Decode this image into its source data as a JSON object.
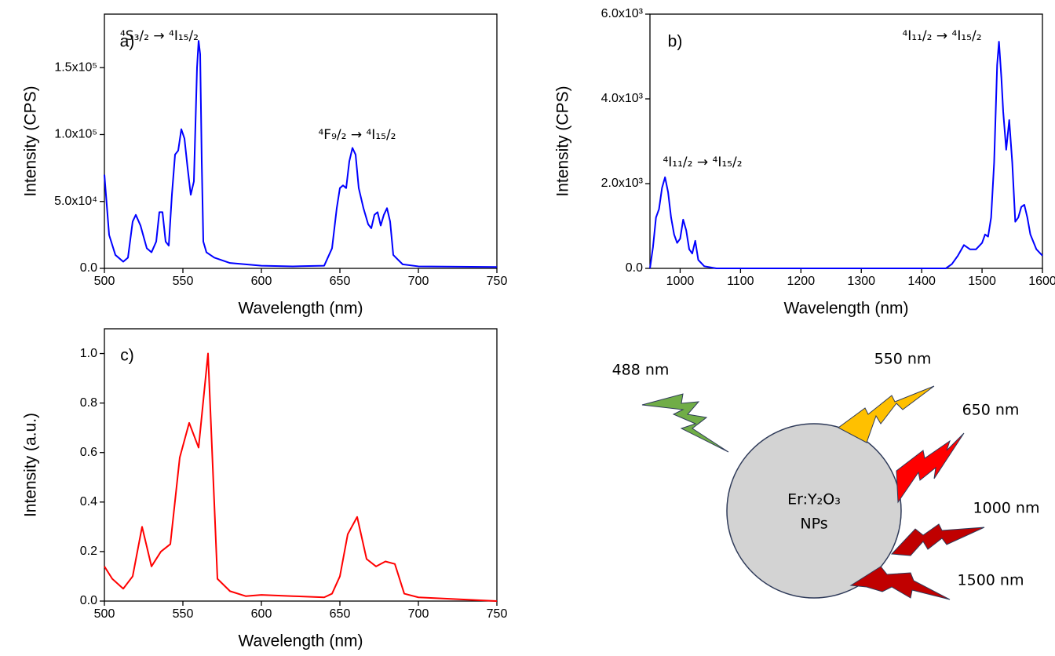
{
  "chart_data": [
    {
      "type": "line",
      "panel_label": "a)",
      "xlabel": "Wavelength (nm)",
      "ylabel": "Intensity (CPS)",
      "annotations": [
        "⁴S₃/₂ → ⁴I₁₅/₂",
        "⁴F₉/₂ → ⁴I₁₅/₂"
      ],
      "color": "#0000ff",
      "xlim": [
        500,
        750
      ],
      "xticks": [
        500,
        550,
        600,
        650,
        700,
        750
      ],
      "ylim": [
        0,
        190000
      ],
      "yticks": [
        {
          "value": 0,
          "label": "0.0"
        },
        {
          "value": 50000,
          "label": "5.0x10⁴"
        },
        {
          "value": 100000,
          "label": "1.0x10⁵"
        },
        {
          "value": 150000,
          "label": "1.5x10⁵"
        }
      ],
      "x": [
        500,
        503,
        507,
        512,
        515,
        518,
        520,
        523,
        527,
        530,
        533,
        535,
        537,
        539,
        541,
        543,
        545,
        547,
        549,
        551,
        553,
        555,
        557,
        559,
        560,
        561,
        562,
        563,
        565,
        570,
        580,
        600,
        620,
        640,
        645,
        648,
        650,
        652,
        654,
        656,
        658,
        660,
        662,
        665,
        668,
        670,
        672,
        674,
        676,
        678,
        680,
        682,
        684,
        690,
        700,
        750
      ],
      "values": [
        70000,
        25000,
        10000,
        5000,
        8000,
        35000,
        40000,
        32000,
        15000,
        12000,
        20000,
        42000,
        42000,
        20000,
        17000,
        55000,
        85000,
        88000,
        104000,
        97000,
        75000,
        55000,
        65000,
        150000,
        170000,
        160000,
        80000,
        20000,
        12000,
        8000,
        4000,
        2000,
        1500,
        2000,
        15000,
        45000,
        60000,
        62000,
        60000,
        80000,
        90000,
        85000,
        60000,
        45000,
        33000,
        30000,
        40000,
        42000,
        32000,
        40000,
        45000,
        35000,
        10000,
        3000,
        1500,
        1000
      ]
    },
    {
      "type": "line",
      "panel_label": "b)",
      "xlabel": "Wavelength (nm)",
      "ylabel": "Intensity (CPS)",
      "annotations": [
        "⁴I₁₁/₂ → ⁴I₁₅/₂",
        "⁴I₁₁/₂ → ⁴I₁₅/₂"
      ],
      "color": "#0000ff",
      "xlim": [
        950,
        1600
      ],
      "xticks": [
        1000,
        1100,
        1200,
        1300,
        1400,
        1500,
        1600
      ],
      "ylim": [
        0,
        6000
      ],
      "yticks": [
        {
          "value": 0,
          "label": "0.0"
        },
        {
          "value": 2000,
          "label": "2.0x10³"
        },
        {
          "value": 4000,
          "label": "4.0x10³"
        },
        {
          "value": 6000,
          "label": "6.0x10³"
        }
      ],
      "x": [
        950,
        955,
        960,
        965,
        970,
        975,
        980,
        985,
        990,
        995,
        1000,
        1005,
        1010,
        1015,
        1020,
        1025,
        1030,
        1040,
        1060,
        1440,
        1450,
        1460,
        1470,
        1480,
        1490,
        1500,
        1505,
        1510,
        1515,
        1520,
        1525,
        1528,
        1532,
        1535,
        1540,
        1545,
        1550,
        1555,
        1560,
        1565,
        1570,
        1575,
        1580,
        1590,
        1600
      ],
      "values": [
        0,
        500,
        1200,
        1400,
        1900,
        2150,
        1800,
        1200,
        800,
        600,
        700,
        1150,
        900,
        450,
        350,
        650,
        200,
        50,
        0,
        0,
        100,
        300,
        550,
        450,
        450,
        600,
        800,
        750,
        1200,
        2500,
        4800,
        5350,
        4500,
        3700,
        2800,
        3500,
        2500,
        1100,
        1200,
        1450,
        1500,
        1200,
        800,
        450,
        300
      ]
    },
    {
      "type": "line",
      "panel_label": "c)",
      "xlabel": "Wavelength (nm)",
      "ylabel": "Intensity (a.u.)",
      "annotations": [],
      "color": "#ff0000",
      "xlim": [
        500,
        750
      ],
      "xticks": [
        500,
        550,
        600,
        650,
        700,
        750
      ],
      "ylim": [
        0,
        1.1
      ],
      "yticks": [
        {
          "value": 0,
          "label": "0.0"
        },
        0.2,
        0.4,
        0.6,
        0.8,
        {
          "value": 1,
          "label": "1.0"
        }
      ],
      "x": [
        500,
        505,
        512,
        518,
        524,
        530,
        536,
        542,
        548,
        554,
        560,
        566,
        572,
        580,
        590,
        600,
        620,
        640,
        645,
        650,
        655,
        661,
        667,
        673,
        679,
        685,
        691,
        700,
        750
      ],
      "values": [
        0.14,
        0.09,
        0.05,
        0.1,
        0.3,
        0.14,
        0.2,
        0.23,
        0.58,
        0.72,
        0.62,
        1.0,
        0.09,
        0.04,
        0.02,
        0.025,
        0.02,
        0.015,
        0.03,
        0.1,
        0.27,
        0.34,
        0.17,
        0.14,
        0.16,
        0.15,
        0.03,
        0.015,
        0.0
      ]
    }
  ],
  "diagram": {
    "particle": [
      "Er:Y₂O₃",
      "NPs"
    ],
    "wavelengths": [
      "488 nm",
      "550 nm",
      "650 nm",
      "1000 nm",
      "1500 nm"
    ]
  }
}
